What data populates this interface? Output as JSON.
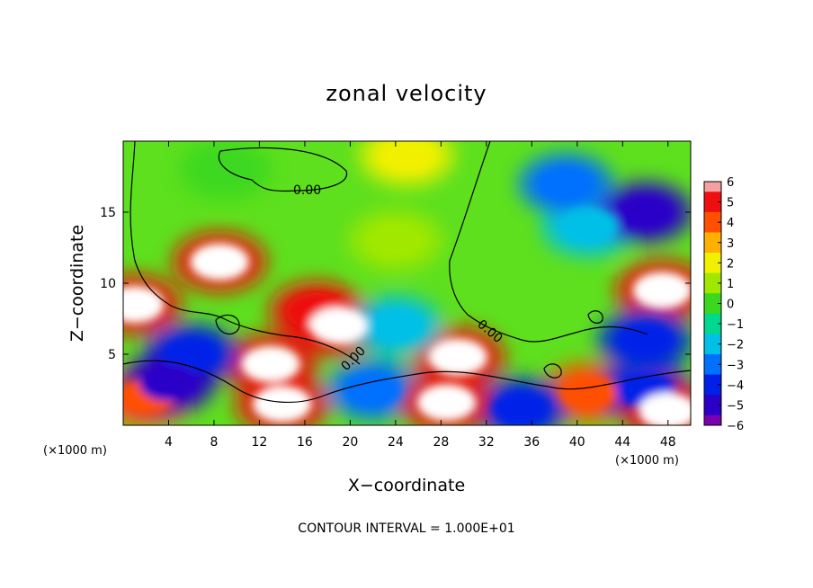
{
  "chart_data": {
    "type": "heatmap",
    "title": "zonal velocity",
    "xlabel": "X−coordinate",
    "ylabel": "Z−coordinate",
    "x_unit_label_left": "(×1000 m)",
    "x_unit_label_right": "(×1000 m)",
    "xlim": [
      0,
      50
    ],
    "ylim": [
      0,
      20
    ],
    "x_ticks": [
      4,
      8,
      12,
      16,
      20,
      24,
      28,
      32,
      36,
      40,
      44,
      48
    ],
    "y_ticks": [
      5,
      10,
      15
    ],
    "colorbar": {
      "range": [
        -6,
        6
      ],
      "ticks": [
        "6",
        "5",
        "4",
        "3",
        "2",
        "1",
        "0",
        "−1",
        "−2",
        "−3",
        "−4",
        "−5",
        "−6"
      ],
      "out_of_range_color": "#ffffff"
    },
    "contour_labels": [
      "0.00",
      "0.00",
      "0.00"
    ],
    "contour_interval_text": "CONTOUR INTERVAL = 1.000E+01",
    "features": [
      {
        "x": 8.5,
        "z": 11.5,
        "value": 7
      },
      {
        "x": 17.0,
        "z": 8.0,
        "value": 5
      },
      {
        "x": 19.0,
        "z": 7.0,
        "value": 7
      },
      {
        "x": 13.0,
        "z": 4.3,
        "value": 7
      },
      {
        "x": 29.5,
        "z": 4.8,
        "value": 7
      },
      {
        "x": 41.0,
        "z": 2.3,
        "value": 4
      },
      {
        "x": 2.0,
        "z": 2.0,
        "value": 4
      },
      {
        "x": 24.0,
        "z": 13.0,
        "value": 1.2
      },
      {
        "x": 25.0,
        "z": 19.0,
        "value": 1.8
      },
      {
        "x": 9.0,
        "z": 18.0,
        "value": 0.3
      },
      {
        "x": 41.0,
        "z": 14.0,
        "value": -2.4
      },
      {
        "x": 46.0,
        "z": 15.0,
        "value": -4.6
      },
      {
        "x": 39.0,
        "z": 17.0,
        "value": -3.0
      },
      {
        "x": 47.5,
        "z": 9.5,
        "value": 7
      },
      {
        "x": 46.0,
        "z": 6.0,
        "value": -4.0
      },
      {
        "x": 6.0,
        "z": 5.0,
        "value": -4.5
      },
      {
        "x": 4.0,
        "z": 3.0,
        "value": -5.0
      },
      {
        "x": 22.0,
        "z": 2.5,
        "value": -3.5
      },
      {
        "x": 35.0,
        "z": 1.2,
        "value": -4.0
      },
      {
        "x": 46.0,
        "z": 2.5,
        "value": -4.0
      },
      {
        "x": 14.0,
        "z": 1.5,
        "value": 7
      },
      {
        "x": 28.5,
        "z": 1.6,
        "value": 7
      },
      {
        "x": 48.0,
        "z": 1.0,
        "value": 7
      },
      {
        "x": 24.0,
        "z": 7.0,
        "value": -2.0
      },
      {
        "x": 1.0,
        "z": 8.5,
        "value": 7
      }
    ]
  }
}
